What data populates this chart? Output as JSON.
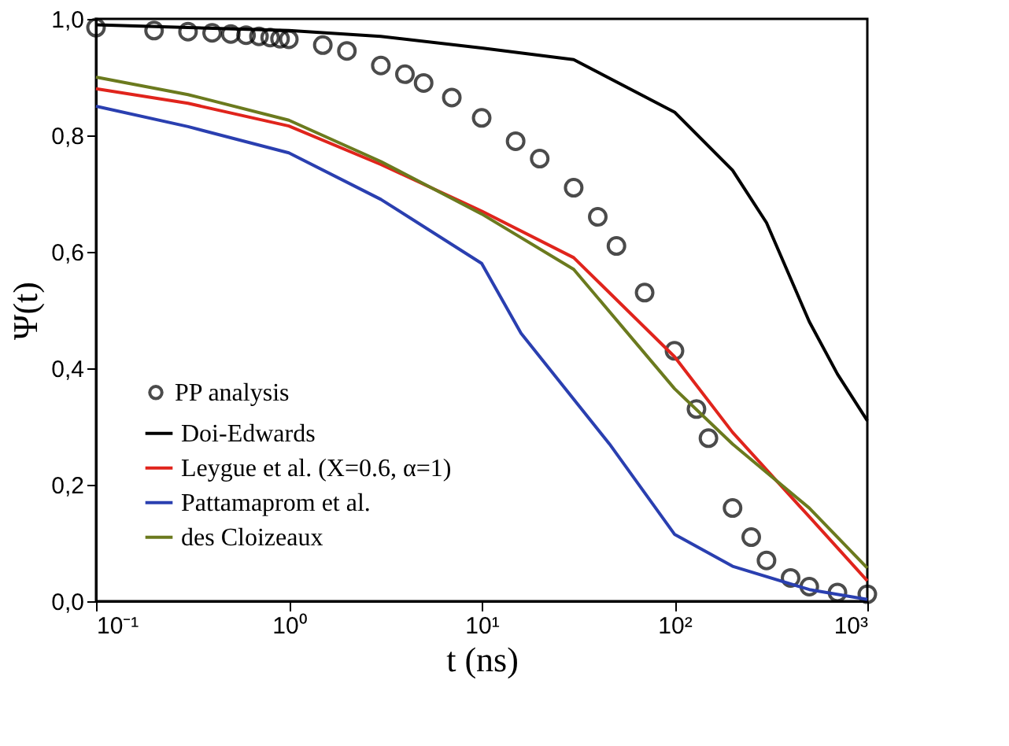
{
  "chart_data": {
    "type": "line",
    "xlabel": "t (ns)",
    "ylabel": "Ψ(t)",
    "log": "x",
    "xlim": [
      0.1,
      1000
    ],
    "xticks": [
      {
        "value": 0.1,
        "label": "10⁻¹"
      },
      {
        "value": 1,
        "label": "10⁰"
      },
      {
        "value": 10,
        "label": "10¹"
      },
      {
        "value": 100,
        "label": "10²"
      },
      {
        "value": 1000,
        "label": "10³"
      }
    ],
    "ylim": [
      0,
      1
    ],
    "yticks": [
      {
        "value": 0,
        "label": "0,0"
      },
      {
        "value": 0.2,
        "label": "0,2"
      },
      {
        "value": 0.4,
        "label": "0,4"
      },
      {
        "value": 0.6,
        "label": "0,6"
      },
      {
        "value": 0.8,
        "label": "0,8"
      },
      {
        "value": 1,
        "label": "1,0"
      }
    ],
    "grid": false,
    "legend": "bottom left",
    "line_style": "solid",
    "series": [
      {
        "name": "PP analysis",
        "type": "scatter",
        "marker": "circle",
        "color": "#000000",
        "x": [
          0.1,
          0.2,
          0.3,
          0.4,
          0.5,
          0.6,
          0.7,
          0.8,
          0.9,
          1,
          1.5,
          2,
          3,
          4,
          5,
          7,
          10,
          15,
          20,
          30,
          40,
          50,
          70,
          100,
          130,
          150,
          200,
          250,
          300,
          400,
          500,
          700,
          1000
        ],
        "values": [
          0.985,
          0.98,
          0.978,
          0.976,
          0.974,
          0.972,
          0.97,
          0.968,
          0.966,
          0.965,
          0.955,
          0.945,
          0.92,
          0.905,
          0.89,
          0.865,
          0.83,
          0.79,
          0.76,
          0.71,
          0.66,
          0.61,
          0.53,
          0.43,
          0.33,
          0.28,
          0.16,
          0.11,
          0.07,
          0.04,
          0.025,
          0.015,
          0.012
        ]
      },
      {
        "name": "Doi-Edwards",
        "type": "line",
        "color": "#000000",
        "x": [
          0.1,
          1,
          3,
          10,
          30,
          100,
          200,
          300,
          500,
          700,
          1000
        ],
        "values": [
          0.99,
          0.98,
          0.97,
          0.95,
          0.93,
          0.84,
          0.74,
          0.65,
          0.48,
          0.39,
          0.31
        ]
      },
      {
        "name": "Leygue et al. (X=0.6, α=1)",
        "type": "line",
        "color": "#e0241c",
        "x": [
          0.1,
          0.3,
          1,
          3,
          10,
          30,
          100,
          200,
          500,
          1000
        ],
        "values": [
          0.88,
          0.855,
          0.816,
          0.75,
          0.67,
          0.59,
          0.42,
          0.29,
          0.145,
          0.035
        ]
      },
      {
        "name": "Pattamaprom et al.",
        "type": "line",
        "color": "#2a3fb0",
        "x": [
          0.1,
          0.3,
          1,
          3,
          10,
          16,
          46,
          100,
          200,
          500,
          1000
        ],
        "values": [
          0.85,
          0.815,
          0.77,
          0.69,
          0.58,
          0.46,
          0.27,
          0.115,
          0.06,
          0.02,
          0.003
        ]
      },
      {
        "name": "des Cloizeaux",
        "type": "line",
        "color": "#6b7a1e",
        "x": [
          0.1,
          0.3,
          1,
          3,
          10,
          30,
          100,
          200,
          500,
          1000
        ],
        "values": [
          0.9,
          0.87,
          0.826,
          0.755,
          0.665,
          0.57,
          0.365,
          0.27,
          0.16,
          0.057
        ]
      }
    ]
  }
}
